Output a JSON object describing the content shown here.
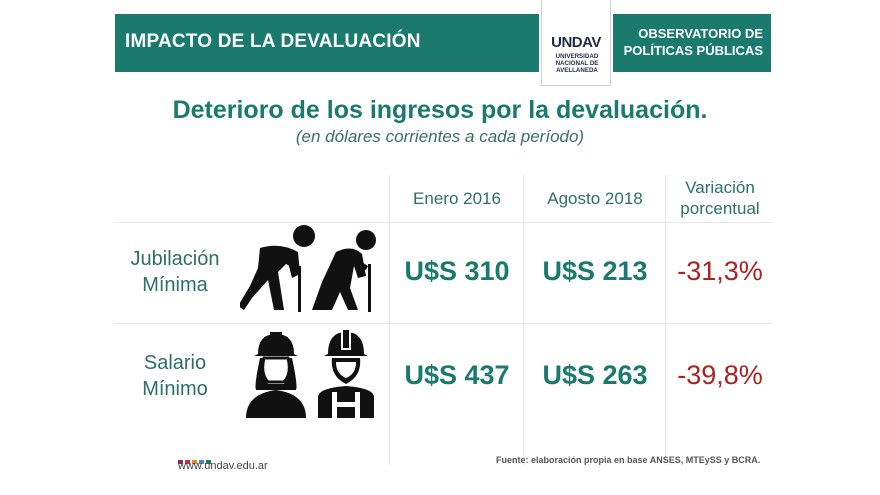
{
  "header": {
    "title": "IMPACTO DE LA DEVALUACIÓN",
    "right_line1": "OBSERVATORIO DE",
    "right_line2": "POLÍTICAS PÚBLICAS",
    "logo_text": "UNDAV",
    "logo_sub1": "UNIVERSIDAD",
    "logo_sub2": "NACIONAL DE",
    "logo_sub3": "AVELLANEDA",
    "color": "#1a7a6e"
  },
  "heading": "Deterioro de los ingresos por la devaluación.",
  "subheading": "(en dólares corrientes a cada período)",
  "table": {
    "columns": [
      "Enero 2016",
      "Agosto 2018",
      "Variación",
      "porcentual"
    ],
    "rows": [
      {
        "label1": "Jubilación",
        "label2": "Mínima",
        "icon": "elderly-people-icon",
        "v1": "U$S 310",
        "v2": "U$S 213",
        "var": "-31,3%"
      },
      {
        "label1": "Salario",
        "label2": "Mínimo",
        "icon": "workers-helmet-icon",
        "v1": "U$S 437",
        "v2": "U$S 263",
        "var": "-39,8%"
      }
    ]
  },
  "footer": {
    "url": "www.undav.edu.ar",
    "source": "Fuente: elaboración propia en base ANSES, MTEySS y BCRA.",
    "dot_colors": [
      "#8b2a6b",
      "#d0312d",
      "#e6871d",
      "#3b8ec8",
      "#1a7a6e"
    ]
  }
}
